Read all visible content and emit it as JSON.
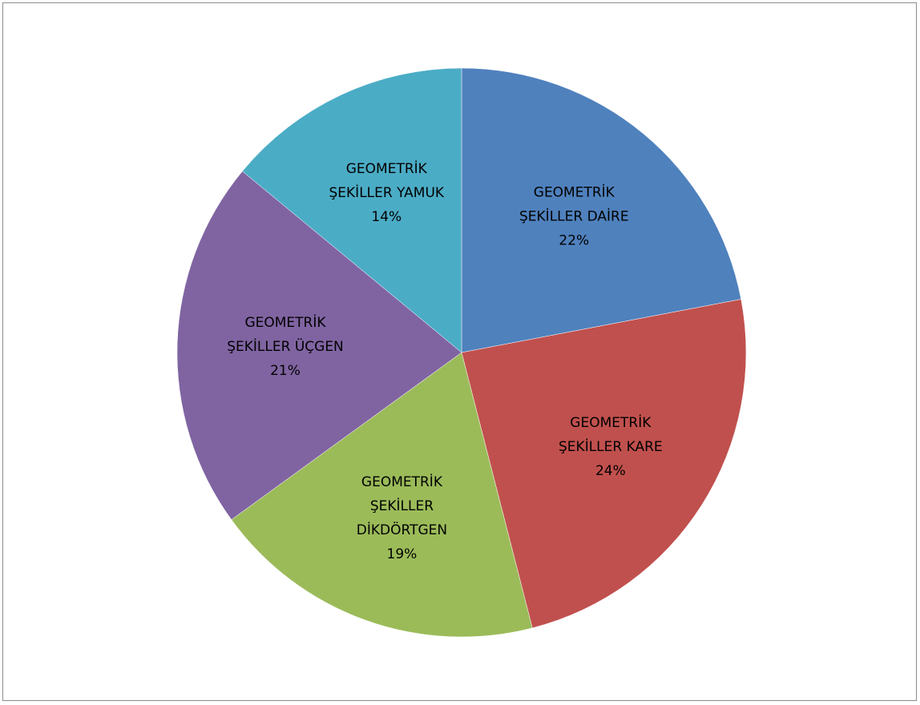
{
  "chart_data": {
    "type": "pie",
    "title": "",
    "legend": "none",
    "slices": [
      {
        "label_lines": [
          "GEOMETRİK",
          "ŞEKİLLER DAİRE"
        ],
        "name": "GEOMETRİK ŞEKİLLER DAİRE",
        "value": 22,
        "value_label": "22%",
        "color": "#4f81bd"
      },
      {
        "label_lines": [
          "GEOMETRİK",
          "ŞEKİLLER KARE"
        ],
        "name": "GEOMETRİK ŞEKİLLER KARE",
        "value": 24,
        "value_label": "24%",
        "color": "#c0504d"
      },
      {
        "label_lines": [
          "GEOMETRİK",
          "ŞEKİLLER",
          "DİKDÖRTGEN"
        ],
        "name": "GEOMETRİK ŞEKİLLER DİKDÖRTGEN",
        "value": 19,
        "value_label": "19%",
        "color": "#9bbb59"
      },
      {
        "label_lines": [
          "GEOMETRİK",
          "ŞEKİLLER ÜÇGEN"
        ],
        "name": "GEOMETRİK ŞEKİLLER ÜÇGEN",
        "value": 21,
        "value_label": "21%",
        "color": "#8064a2"
      },
      {
        "label_lines": [
          "GEOMETRİK",
          "ŞEKİLLER YAMUK"
        ],
        "name": "GEOMETRİK ŞEKİLLER YAMUK",
        "value": 14,
        "value_label": "14%",
        "color": "#4bacc6"
      }
    ]
  }
}
